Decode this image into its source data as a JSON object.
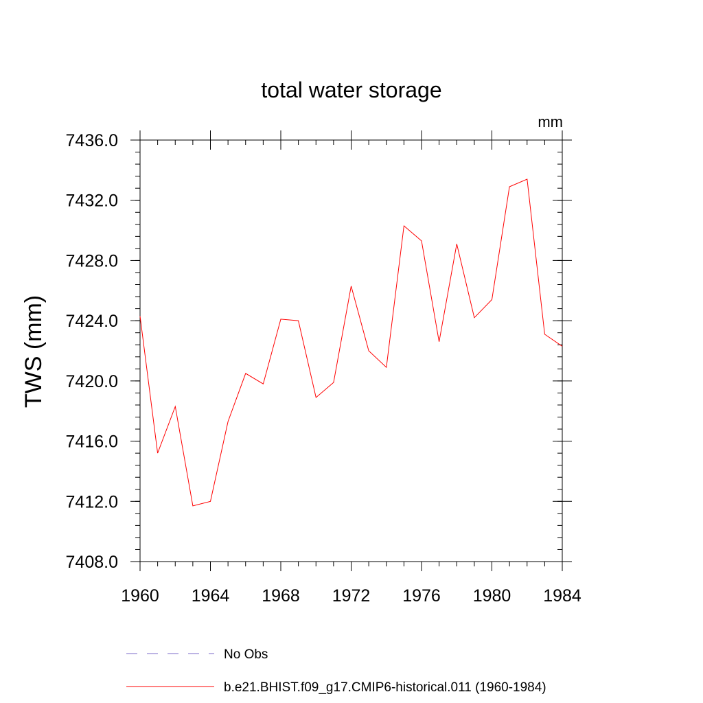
{
  "chart_data": {
    "type": "line",
    "title": "total water storage",
    "units_label": "mm",
    "ylabel": "TWS  (mm)",
    "xlabel": "",
    "xlim": [
      1960,
      1984
    ],
    "ylim": [
      7408,
      7436
    ],
    "x_ticks": [
      1960,
      1964,
      1968,
      1972,
      1976,
      1980,
      1984
    ],
    "x_tick_labels": [
      "1960",
      "1964",
      "1968",
      "1972",
      "1976",
      "1980",
      "1984"
    ],
    "y_ticks": [
      7408,
      7412,
      7416,
      7420,
      7424,
      7428,
      7432,
      7436
    ],
    "y_tick_labels": [
      "7408.0",
      "7412.0",
      "7416.0",
      "7420.0",
      "7424.0",
      "7428.0",
      "7432.0",
      "7436.0"
    ],
    "x_minor_step": 1,
    "y_minor_step": 0.8,
    "grid": false,
    "legend_position": "bottom-left",
    "series": [
      {
        "name": "No Obs",
        "color": "#7b68c8",
        "dash": "dashed",
        "x": [],
        "values": []
      },
      {
        "name": "b.e21.BHIST.f09_g17.CMIP6-historical.011 (1960-1984)",
        "color": "#ff0000",
        "dash": "solid",
        "x": [
          1960,
          1961,
          1962,
          1963,
          1964,
          1965,
          1966,
          1967,
          1968,
          1969,
          1970,
          1971,
          1972,
          1973,
          1974,
          1975,
          1976,
          1977,
          1978,
          1979,
          1980,
          1981,
          1982,
          1983,
          1984
        ],
        "values": [
          7424.3,
          7415.2,
          7418.3,
          7411.7,
          7412.0,
          7417.3,
          7420.5,
          7419.8,
          7424.1,
          7424.0,
          7418.9,
          7419.9,
          7426.3,
          7422.0,
          7420.9,
          7430.3,
          7429.3,
          7422.6,
          7429.1,
          7424.2,
          7425.4,
          7432.9,
          7433.4,
          7423.1,
          7422.3
        ]
      }
    ]
  }
}
